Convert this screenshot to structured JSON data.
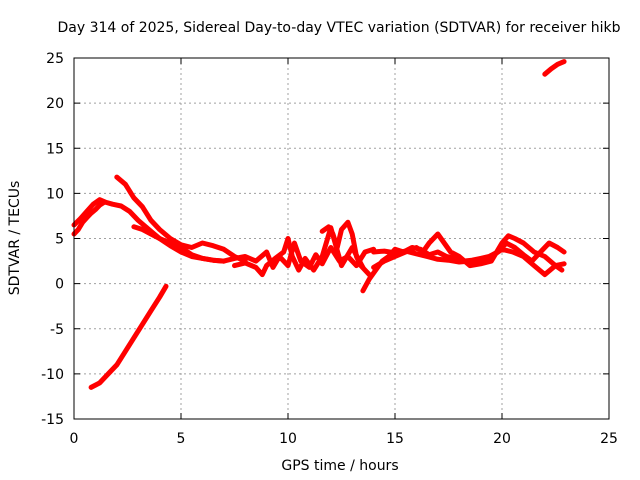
{
  "chart_data": {
    "type": "line",
    "title": "Day 314 of 2025, Sidereal Day-to-day VTEC variation (SDTVAR) for receiver hikb",
    "xlabel": "GPS time / hours",
    "ylabel": "SDTVAR / TECUs",
    "xlim": [
      0,
      25
    ],
    "ylim": [
      -15,
      25
    ],
    "xticks": [
      0,
      5,
      10,
      15,
      20,
      25
    ],
    "yticks": [
      -15,
      -10,
      -5,
      0,
      5,
      10,
      15,
      20,
      25
    ],
    "grid": true,
    "color": "#ff0000",
    "series": [
      {
        "name": "trace-1",
        "x": [
          0.0,
          0.3,
          0.6,
          0.9,
          1.2,
          1.5,
          1.8,
          2.2,
          2.6,
          3.0,
          3.5,
          4.0,
          4.5,
          5.0,
          5.5,
          6.0,
          6.5,
          7.0
        ],
        "y": [
          6.5,
          7.2,
          8.0,
          8.8,
          9.3,
          9.0,
          8.8,
          8.6,
          8.0,
          7.0,
          6.0,
          5.0,
          4.2,
          3.5,
          3.0,
          2.8,
          2.6,
          2.5
        ]
      },
      {
        "name": "trace-2",
        "x": [
          0.0,
          0.2,
          0.4,
          0.6,
          0.8,
          1.0,
          1.2,
          1.4
        ],
        "y": [
          5.5,
          6.0,
          6.8,
          7.3,
          7.8,
          8.2,
          8.7,
          9.0
        ]
      },
      {
        "name": "trace-3",
        "x": [
          2.0,
          2.4,
          2.8,
          3.2,
          3.6,
          4.0,
          4.5,
          5.0,
          5.5,
          6.0,
          6.5,
          7.0,
          7.5,
          8.0
        ],
        "y": [
          11.8,
          11.0,
          9.5,
          8.5,
          7.0,
          6.0,
          5.0,
          4.3,
          4.0,
          4.5,
          4.2,
          3.8,
          3.0,
          2.5
        ]
      },
      {
        "name": "trace-4",
        "x": [
          2.8,
          3.2,
          3.6,
          4.0,
          4.5,
          5.0,
          5.5,
          6.0,
          6.5,
          7.0
        ],
        "y": [
          6.3,
          6.0,
          5.5,
          5.0,
          4.5,
          4.0,
          3.2,
          2.8,
          2.6,
          2.5
        ]
      },
      {
        "name": "trace-5",
        "x": [
          0.8,
          1.2,
          1.6,
          2.0,
          2.4,
          2.8,
          3.2,
          3.6,
          4.0,
          4.3
        ],
        "y": [
          -11.5,
          -11.0,
          -10.0,
          -9.0,
          -7.5,
          -6.0,
          -4.5,
          -3.0,
          -1.5,
          -0.3
        ]
      },
      {
        "name": "trace-6",
        "x": [
          7.0,
          7.5,
          8.0,
          8.5,
          9.0,
          9.3,
          9.6,
          10.0,
          10.3,
          10.6,
          11.0,
          11.3,
          11.6,
          12.0,
          12.4,
          12.8,
          13.2,
          13.6,
          14.0
        ],
        "y": [
          2.5,
          2.8,
          3.0,
          2.5,
          3.5,
          1.8,
          3.0,
          2.0,
          4.5,
          2.5,
          1.8,
          3.2,
          2.2,
          4.0,
          2.5,
          3.0,
          2.0,
          3.5,
          3.8
        ]
      },
      {
        "name": "trace-7",
        "x": [
          7.5,
          8.0,
          8.5,
          8.8,
          9.0,
          9.4,
          9.8,
          10.0,
          10.2,
          10.5,
          10.8,
          11.2,
          11.6,
          12.0,
          12.5,
          13.0,
          13.5
        ],
        "y": [
          2.0,
          2.3,
          1.8,
          1.0,
          2.0,
          2.8,
          3.5,
          5.0,
          3.0,
          1.5,
          2.8,
          1.5,
          3.0,
          6.2,
          2.0,
          4.0,
          1.8
        ]
      },
      {
        "name": "trace-8",
        "x": [
          11.6,
          11.9,
          12.1,
          12.3,
          12.5,
          12.8,
          13.0,
          13.2,
          13.4,
          13.6,
          13.8
        ],
        "y": [
          5.8,
          6.3,
          5.5,
          4.0,
          6.0,
          6.8,
          5.5,
          3.0,
          2.0,
          1.5,
          1.0
        ]
      },
      {
        "name": "trace-9",
        "x": [
          13.5,
          13.8,
          14.1,
          14.4,
          14.7,
          15.0,
          15.4,
          15.8,
          16.2,
          16.6,
          17.0,
          17.4,
          17.8,
          18.2,
          18.6,
          19.0,
          19.4,
          19.8,
          20.2,
          20.6,
          21.0,
          21.4,
          21.8,
          22.2,
          22.6,
          22.9
        ],
        "y": [
          -0.8,
          0.5,
          1.5,
          2.5,
          3.0,
          3.8,
          3.5,
          4.0,
          3.8,
          3.2,
          3.5,
          3.0,
          2.8,
          2.5,
          2.6,
          2.8,
          3.0,
          3.5,
          4.5,
          4.0,
          3.2,
          2.5,
          3.5,
          4.5,
          4.0,
          3.5
        ]
      },
      {
        "name": "trace-10",
        "x": [
          14.0,
          14.5,
          15.0,
          15.5,
          16.0,
          16.5,
          17.0,
          17.5,
          18.0,
          18.5,
          19.0,
          19.5,
          20.0,
          20.5,
          21.0,
          21.5,
          22.0,
          22.5,
          22.9
        ],
        "y": [
          3.5,
          3.6,
          3.4,
          3.6,
          3.3,
          3.0,
          2.7,
          2.6,
          2.4,
          2.5,
          2.6,
          3.0,
          3.8,
          3.5,
          3.0,
          2.0,
          1.0,
          2.0,
          2.2
        ]
      },
      {
        "name": "trace-11",
        "x": [
          14.0,
          14.5,
          15.0,
          15.5,
          16.0,
          16.3,
          16.6,
          17.0,
          17.3,
          17.6,
          18.0,
          18.5,
          19.0,
          19.5,
          20.0,
          20.3,
          20.6,
          21.0,
          21.5,
          22.0,
          22.5,
          22.8
        ],
        "y": [
          1.8,
          2.5,
          3.0,
          3.5,
          4.0,
          3.5,
          4.5,
          5.5,
          4.5,
          3.5,
          3.0,
          2.0,
          2.2,
          2.5,
          4.5,
          5.3,
          5.0,
          4.5,
          3.5,
          3.0,
          2.0,
          1.5
        ]
      },
      {
        "name": "trace-12",
        "x": [
          22.0,
          22.3,
          22.6,
          22.9
        ],
        "y": [
          23.2,
          23.8,
          24.3,
          24.6
        ]
      }
    ]
  }
}
